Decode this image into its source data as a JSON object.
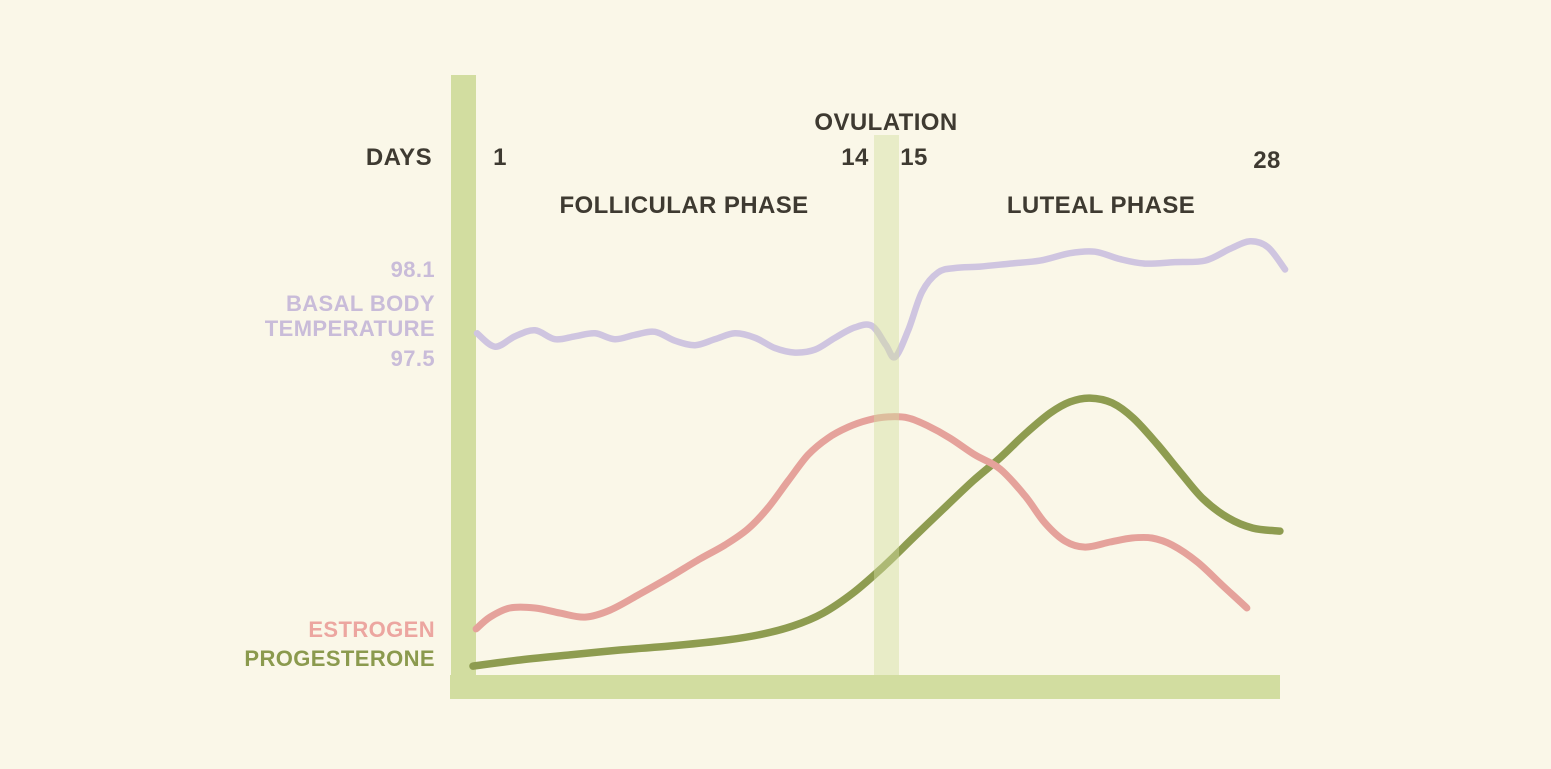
{
  "colors": {
    "background": "#faf7e8",
    "axis_bar": "#d2dda0",
    "ovulation_band": "rgba(210,221,160,0.45)",
    "text_dark": "#3e3a31",
    "bbt": "#cfc5e0",
    "bbt_text": "#c9bcd9",
    "estrogen": "#e5a29b",
    "estrogen_text": "#eca6a0",
    "progesterone": "#8e9c50",
    "progesterone_text": "#8b9a4e"
  },
  "labels": {
    "days": "DAYS",
    "day_start": "1",
    "day_before_ovulation": "14",
    "day_after_ovulation": "15",
    "day_end": "28",
    "ovulation": "OVULATION",
    "follicular_phase": "FOLLICULAR PHASE",
    "luteal_phase": "LUTEAL PHASE",
    "bbt_high": "98.1",
    "bbt_name_line1": "BASAL BODY",
    "bbt_name_line2": "TEMPERATURE",
    "bbt_low": "97.5",
    "estrogen": "ESTROGEN",
    "progesterone": "PROGESTERONE"
  },
  "chart_data": {
    "type": "line",
    "x_axis": {
      "label": "DAYS",
      "ticks": [
        "1",
        "14",
        "15",
        "28"
      ],
      "range": [
        1,
        28
      ]
    },
    "phases": [
      {
        "label": "FOLLICULAR PHASE",
        "start_day": 1,
        "end_day": 14
      },
      {
        "label": "LUTEAL PHASE",
        "start_day": 15,
        "end_day": 28
      }
    ],
    "annotations": [
      {
        "label": "OVULATION",
        "between_days": [
          14,
          15
        ]
      }
    ],
    "y_reference": {
      "series": "BASAL BODY TEMPERATURE",
      "high": 98.1,
      "low": 97.5
    },
    "series": [
      {
        "key": "bbt",
        "name": "BASAL BODY TEMPERATURE",
        "color_key": "bbt",
        "value_type": "temperature_f",
        "points": [
          [
            0.26,
            97.68
          ],
          [
            0.9,
            97.59
          ],
          [
            1.6,
            97.66
          ],
          [
            2.3,
            97.7
          ],
          [
            3.0,
            97.64
          ],
          [
            3.71,
            97.66
          ],
          [
            4.41,
            97.68
          ],
          [
            5.11,
            97.64
          ],
          [
            5.82,
            97.67
          ],
          [
            6.52,
            97.69
          ],
          [
            7.22,
            97.63
          ],
          [
            7.93,
            97.6
          ],
          [
            8.63,
            97.64
          ],
          [
            9.33,
            97.68
          ],
          [
            10.04,
            97.65
          ],
          [
            10.74,
            97.58
          ],
          [
            11.44,
            97.55
          ],
          [
            12.15,
            97.57
          ],
          [
            12.85,
            97.65
          ],
          [
            13.55,
            97.72
          ],
          [
            14.15,
            97.73
          ],
          [
            14.64,
            97.6
          ],
          [
            14.96,
            97.52
          ],
          [
            15.42,
            97.7
          ],
          [
            15.91,
            97.96
          ],
          [
            16.47,
            98.09
          ],
          [
            17.07,
            98.12
          ],
          [
            17.95,
            98.13
          ],
          [
            19.0,
            98.15
          ],
          [
            20.06,
            98.17
          ],
          [
            21.11,
            98.22
          ],
          [
            21.99,
            98.23
          ],
          [
            22.87,
            98.18
          ],
          [
            23.75,
            98.15
          ],
          [
            24.8,
            98.16
          ],
          [
            25.86,
            98.17
          ],
          [
            26.74,
            98.25
          ],
          [
            27.44,
            98.3
          ],
          [
            28.07,
            98.26
          ],
          [
            28.67,
            98.11
          ]
        ]
      },
      {
        "key": "estrogen",
        "name": "ESTROGEN",
        "color_key": "estrogen",
        "value_type": "relative_level",
        "points": [
          [
            0.23,
            0.146
          ],
          [
            0.72,
            0.19
          ],
          [
            1.42,
            0.224
          ],
          [
            2.3,
            0.224
          ],
          [
            3.18,
            0.205
          ],
          [
            4.06,
            0.19
          ],
          [
            4.94,
            0.216
          ],
          [
            5.99,
            0.276
          ],
          [
            7.05,
            0.34
          ],
          [
            8.1,
            0.407
          ],
          [
            8.98,
            0.459
          ],
          [
            9.79,
            0.519
          ],
          [
            10.49,
            0.597
          ],
          [
            11.2,
            0.698
          ],
          [
            11.9,
            0.795
          ],
          [
            12.6,
            0.858
          ],
          [
            13.31,
            0.899
          ],
          [
            14.01,
            0.925
          ],
          [
            14.71,
            0.937
          ],
          [
            15.42,
            0.933
          ],
          [
            16.12,
            0.903
          ],
          [
            16.89,
            0.858
          ],
          [
            17.77,
            0.795
          ],
          [
            18.65,
            0.743
          ],
          [
            19.53,
            0.642
          ],
          [
            20.23,
            0.541
          ],
          [
            20.93,
            0.474
          ],
          [
            21.64,
            0.451
          ],
          [
            22.52,
            0.47
          ],
          [
            23.29,
            0.485
          ],
          [
            23.99,
            0.485
          ],
          [
            24.7,
            0.459
          ],
          [
            25.58,
            0.396
          ],
          [
            26.45,
            0.31
          ],
          [
            27.33,
            0.224
          ]
        ]
      },
      {
        "key": "progesterone",
        "name": "PROGESTERONE",
        "color_key": "progesterone",
        "value_type": "relative_level",
        "points": [
          [
            0.12,
            0.007
          ],
          [
            1.77,
            0.03
          ],
          [
            3.53,
            0.049
          ],
          [
            5.29,
            0.067
          ],
          [
            7.05,
            0.082
          ],
          [
            8.8,
            0.101
          ],
          [
            10.14,
            0.123
          ],
          [
            11.37,
            0.157
          ],
          [
            12.43,
            0.205
          ],
          [
            13.48,
            0.28
          ],
          [
            14.54,
            0.377
          ],
          [
            15.59,
            0.485
          ],
          [
            16.65,
            0.593
          ],
          [
            17.7,
            0.698
          ],
          [
            18.65,
            0.784
          ],
          [
            19.53,
            0.873
          ],
          [
            20.41,
            0.951
          ],
          [
            21.11,
            0.993
          ],
          [
            21.81,
            1.007
          ],
          [
            22.59,
            0.989
          ],
          [
            23.33,
            0.933
          ],
          [
            24.17,
            0.836
          ],
          [
            24.98,
            0.731
          ],
          [
            25.79,
            0.631
          ],
          [
            26.67,
            0.56
          ],
          [
            27.54,
            0.522
          ],
          [
            28.49,
            0.511
          ]
        ]
      }
    ]
  }
}
